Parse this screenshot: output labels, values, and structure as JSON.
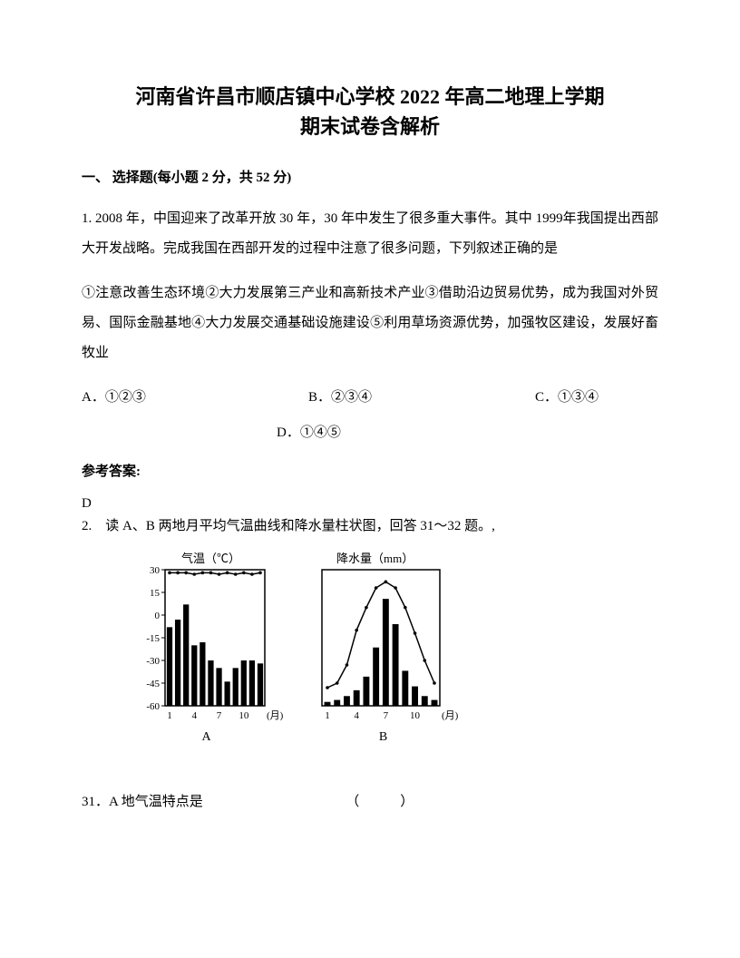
{
  "title_line1": "河南省许昌市顺店镇中心学校 2022 年高二地理上学期",
  "title_line2": "期末试卷含解析",
  "section_header": "一、 选择题(每小题 2 分，共 52 分)",
  "q1_p1": "1. 2008 年，中国迎来了改革开放 30 年，30 年中发生了很多重大事件。其中 1999年我国提出西部大开发战略。完成我国在西部开发的过程中注意了很多问题，下列叙述正确的是",
  "q1_p2": "①注意改善生态环境②大力发展第三产业和高新技术产业③借助沿边贸易优势，成为我国对外贸易、国际金融基地④大力发展交通基础设施建设⑤利用草场资源优势，加强牧区建设，发展好畜牧业",
  "opt_a": "A．①②③",
  "opt_b": "B．②③④",
  "opt_c": "C．①③④",
  "opt_d": "D．①④⑤",
  "answer_label": "参考答案:",
  "answer_value": "D",
  "q2_text": "2.　读 A、B 两地月平均气温曲线和降水量柱状图，回答 31～32 题。,",
  "chart_a": {
    "title": "气温（℃）",
    "y_ticks": [
      30,
      15,
      0,
      -15,
      -30,
      -45,
      -60
    ],
    "x_ticks": [
      1,
      4,
      7,
      10
    ],
    "x_label": "(月)",
    "label": "A",
    "line_values": [
      28,
      28,
      28,
      27,
      28,
      28,
      27,
      28,
      27,
      28,
      27,
      28
    ],
    "bar_values": [
      -8,
      -3,
      7,
      -20,
      -18,
      -30,
      -35,
      -44,
      -35,
      -30,
      -30,
      -32
    ],
    "colors": {
      "line": "#000000",
      "bar": "#000000",
      "axis": "#000000",
      "bg": "#f5f5f5"
    }
  },
  "chart_b": {
    "title": "降水量（mm）",
    "x_ticks": [
      1,
      4,
      7,
      10
    ],
    "x_label": "(月)",
    "label": "B",
    "line_values": [
      -48,
      -45,
      -33,
      -10,
      5,
      18,
      22,
      18,
      5,
      -12,
      -30,
      -45
    ],
    "bar_values": [
      2,
      3,
      5,
      8,
      15,
      30,
      55,
      42,
      18,
      10,
      5,
      3
    ],
    "colors": {
      "line": "#000000",
      "bar": "#000000",
      "axis": "#000000",
      "bg": "#f5f5f5"
    }
  },
  "q31": "31．A 地气温特点是",
  "q31_paren": "（　　　）"
}
